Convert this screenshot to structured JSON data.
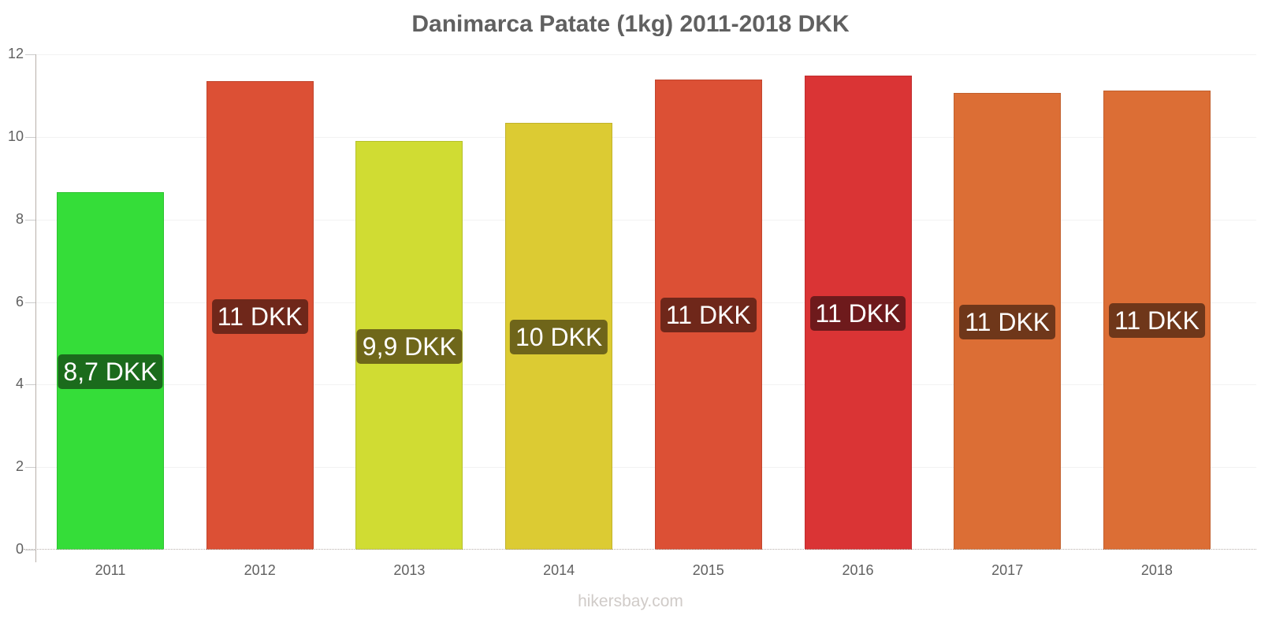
{
  "chart_data": {
    "type": "bar",
    "title": "Danimarca Patate (1kg) 2011-2018 DKK",
    "xlabel": "",
    "ylabel": "",
    "ylim": [
      0,
      12
    ],
    "yticks": [
      0,
      2,
      4,
      6,
      8,
      10,
      12
    ],
    "grid": true,
    "legend": "none",
    "categories": [
      "2011",
      "2012",
      "2013",
      "2014",
      "2015",
      "2016",
      "2017",
      "2018"
    ],
    "values": [
      8.66,
      11.35,
      9.9,
      10.34,
      11.39,
      11.49,
      11.07,
      11.13
    ],
    "data_labels": [
      "8,7 DKK",
      "11 DKK",
      "9,9 DKK",
      "10 DKK",
      "11 DKK",
      "11 DKK",
      "11 DKK",
      "11 DKK"
    ],
    "bar_colors": [
      "#35dd39",
      "#dc5035",
      "#d0dc33",
      "#dccb33",
      "#dc5035",
      "#da3435",
      "#dc6e35",
      "#dc6e35"
    ],
    "label_colors": [
      "#1b6b1c",
      "#6f271a",
      "#6f671a",
      "#6f651a",
      "#6f271a",
      "#6e1a1c",
      "#6f371a",
      "#6f371a"
    ]
  },
  "footer": {
    "source": "hikersbay.com"
  }
}
